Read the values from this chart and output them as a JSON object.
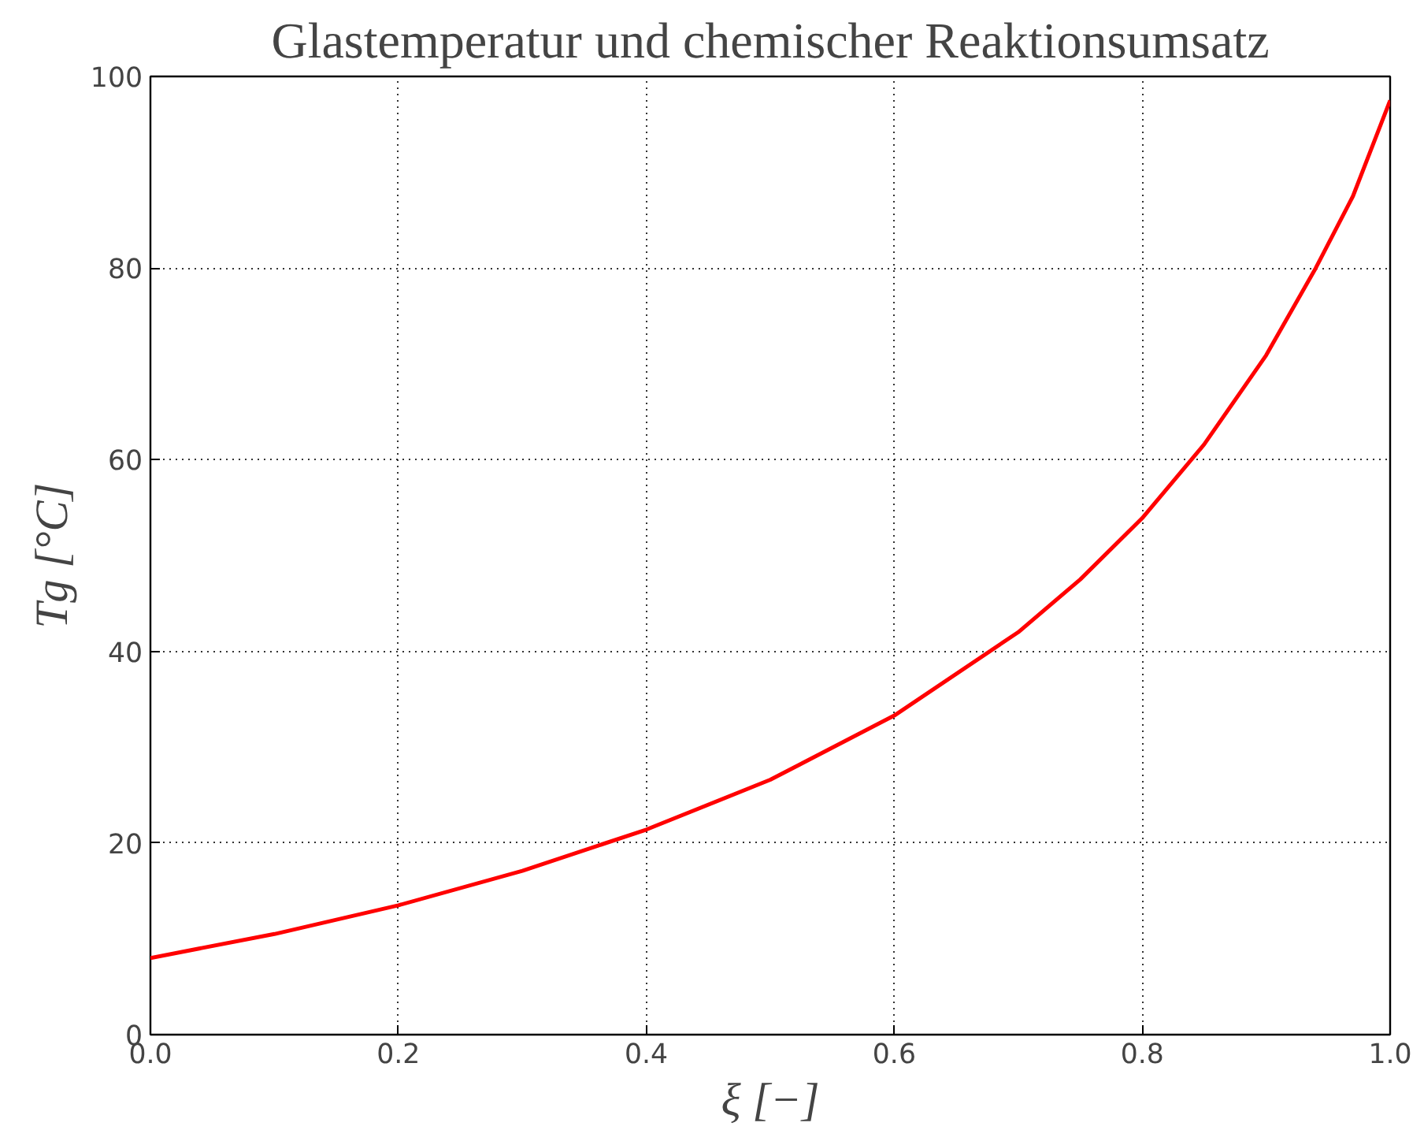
{
  "chart_data": {
    "type": "line",
    "title": "Glastemperatur und chemischer Reaktionsumsatz",
    "xlabel": "ξ [−]",
    "ylabel": "Tg [°C]",
    "x": [
      0,
      0.1,
      0.2,
      0.3,
      0.4,
      0.5,
      0.6,
      0.7,
      0.75,
      0.8,
      0.85,
      0.9,
      0.94,
      0.97,
      1.0
    ],
    "series": [
      {
        "color": "#ff0000",
        "values": [
          8,
          10.5,
          13.5,
          17.1,
          21.4,
          26.6,
          33.3,
          42.0,
          47.5,
          53.9,
          61.6,
          70.9,
          80.0,
          87.5,
          97.5
        ]
      }
    ],
    "xlim": [
      0,
      1
    ],
    "ylim": [
      0,
      100
    ],
    "xticks": [
      {
        "value": 0,
        "label": "0.0"
      },
      0.2,
      0.4,
      0.6,
      0.8,
      {
        "value": 1,
        "label": "1.0"
      }
    ],
    "yticks": [
      0,
      20,
      40,
      60,
      80,
      100
    ],
    "grid": true,
    "line_style": "solid",
    "marker": "none"
  }
}
